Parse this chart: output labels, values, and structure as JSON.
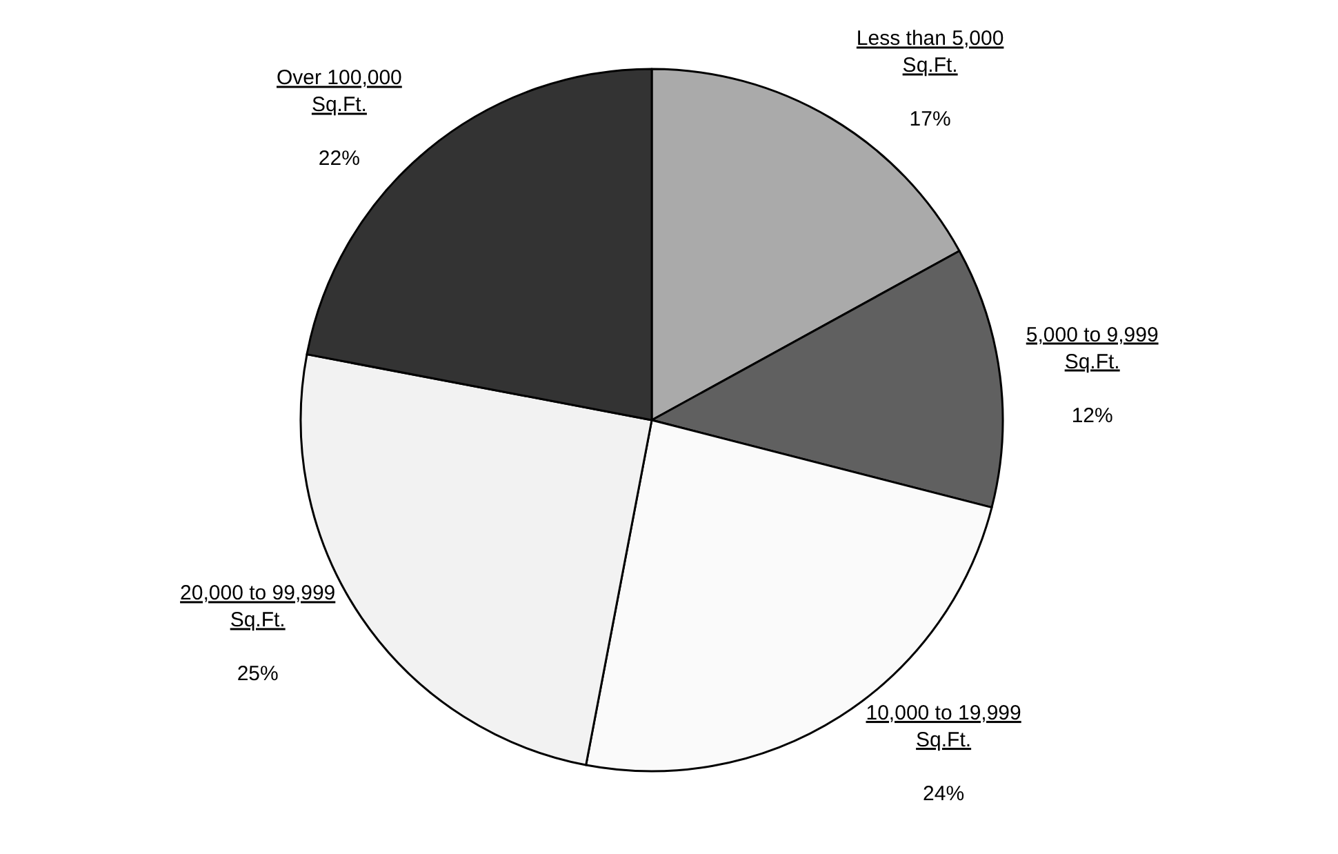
{
  "chart_data": {
    "type": "pie",
    "categories": [
      "Less than 5,000 Sq.Ft.",
      "5,000 to 9,999 Sq.Ft.",
      "10,000 to 19,999 Sq.Ft.",
      "20,000 to 99,999 Sq.Ft.",
      "Over 100,000 Sq.Ft."
    ],
    "values": [
      17,
      12,
      24,
      25,
      22
    ],
    "value_labels": [
      "17%",
      "12%",
      "24%",
      "25%",
      "22%"
    ],
    "colors": [
      "#aaaaaa",
      "#606060",
      "#fafafa",
      "#f2f2f2",
      "#333333"
    ],
    "legend": false
  }
}
